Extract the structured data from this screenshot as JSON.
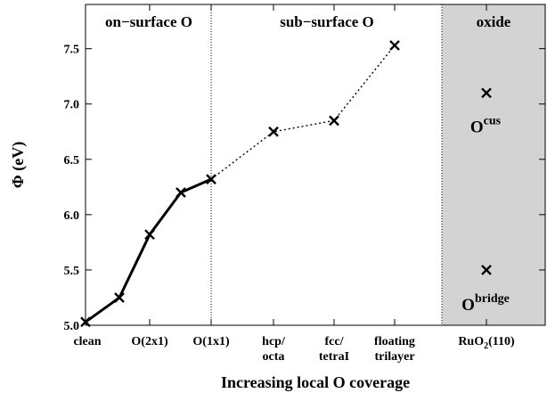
{
  "chart_data": {
    "type": "line",
    "xlabel": "Increasing local O coverage",
    "ylabel": "Φ (eV)",
    "ylim": [
      5.0,
      7.9
    ],
    "yticks": [
      5.0,
      5.5,
      6.0,
      6.5,
      7.0,
      7.5
    ],
    "y_tick_labels": [
      "5.0",
      "5.5",
      "6.0",
      "6.5",
      "7.0",
      "7.5"
    ],
    "grid": false,
    "regions": [
      {
        "label": "on−surface O"
      },
      {
        "label": "sub−surface O"
      },
      {
        "label": "oxide",
        "shaded": true,
        "color": "#d3d3d3"
      }
    ],
    "x_tick_labels": [
      {
        "line1": "clean",
        "line2": ""
      },
      {
        "line1": "O(2x1)",
        "line2": ""
      },
      {
        "line1": "O(1x1)",
        "line2": ""
      },
      {
        "line1": "hcp/",
        "line2": "octa"
      },
      {
        "line1": "fcc/",
        "line2": "tetraI"
      },
      {
        "line1": "floating",
        "line2": "trilayer"
      },
      {
        "base": "RuO",
        "sub": "2",
        "tail": "(110)"
      }
    ],
    "series": [
      {
        "style": "solid",
        "x": [
          0,
          0.5,
          1,
          1.5,
          2
        ],
        "y": [
          5.03,
          5.25,
          5.82,
          6.2,
          6.32
        ]
      },
      {
        "style": "dotted",
        "x": [
          2,
          3,
          4,
          5
        ],
        "y": [
          6.32,
          6.75,
          6.85,
          7.53
        ]
      }
    ],
    "oxide_points": [
      {
        "base": "O",
        "sup": "cus",
        "y": 7.1
      },
      {
        "base": "O",
        "sup": "bridge",
        "y": 5.5
      }
    ]
  }
}
